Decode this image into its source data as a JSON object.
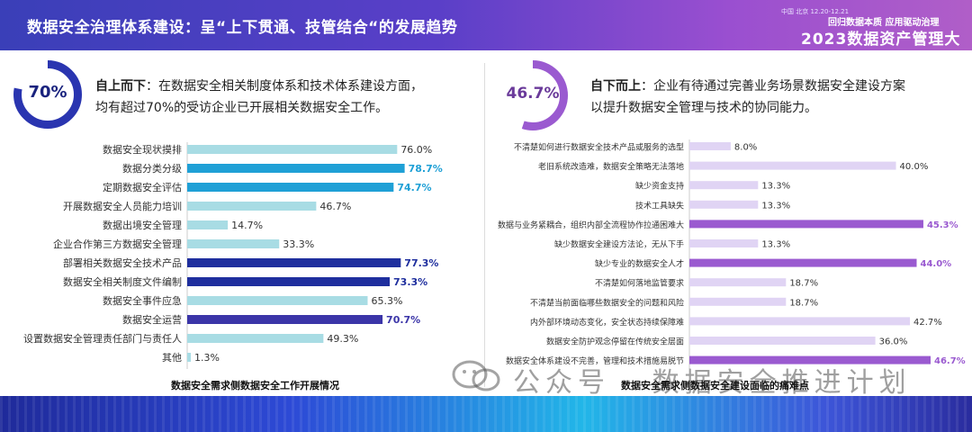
{
  "header": {
    "title": "数据安全治理体系建设：呈“上下贯通、技管结合“的发展趋势",
    "brand_sub": "中国 北京  12.20-12.21",
    "brand_tag": "回归数据本质 应用驱动治理",
    "brand_main": "2023数据资产管理大会"
  },
  "left_panel": {
    "ring_value": "70%",
    "ring_fraction": 0.78,
    "ring_color": "#2a35b0",
    "intro_bold": "自上而下",
    "intro_line1": "：在数据安全相关制度体系和技术体系建设方面，",
    "intro_line2": "均有超过70%的受访企业已开展相关数据安全工作。",
    "caption": "数据安全需求侧数据安全工作开展情况"
  },
  "right_panel": {
    "ring_value": "46.7%",
    "ring_fraction": 0.55,
    "ring_color": "#9a5ad0",
    "intro_bold": "自下而上",
    "intro_line1": "：企业有待通过完善业务场景数据安全建设方案",
    "intro_line2": "以提升数据安全管理与技术的协同能力。",
    "caption": "数据安全需求侧数据安全建设面临的痛难点"
  },
  "chart_data": [
    {
      "type": "bar",
      "orientation": "horizontal",
      "xlim": [
        0,
        100
      ],
      "categories": [
        "数据安全现状摸排",
        "数据分类分级",
        "定期数据安全评估",
        "开展数据安全人员能力培训",
        "数据出境安全管理",
        "企业合作第三方数据安全管理",
        "部署相关数据安全技术产品",
        "数据安全相关制度文件编制",
        "数据安全事件应急",
        "数据安全运营",
        "设置数据安全管理责任部门与责任人",
        "其他"
      ],
      "values": [
        76.0,
        78.7,
        74.7,
        46.7,
        14.7,
        33.3,
        77.3,
        73.3,
        65.3,
        70.7,
        49.3,
        1.3
      ],
      "labels": [
        "76.0%",
        "78.7%",
        "74.7%",
        "46.7%",
        "14.7%",
        "33.3%",
        "77.3%",
        "73.3%",
        "65.3%",
        "70.7%",
        "49.3%",
        "1.3%"
      ],
      "colors": [
        "#a8dce4",
        "#1fa0d6",
        "#1fa0d6",
        "#a8dce4",
        "#a8dce4",
        "#a8dce4",
        "#1f2f9e",
        "#1f2f9e",
        "#a8dce4",
        "#3b35a8",
        "#a8dce4",
        "#a8dce4"
      ],
      "label_colors": [
        "#333333",
        "#1fa0d6",
        "#1fa0d6",
        "#333333",
        "#333333",
        "#333333",
        "#1f2f9e",
        "#1f2f9e",
        "#333333",
        "#3b35a8",
        "#333333",
        "#333333"
      ],
      "label_bold": [
        false,
        true,
        true,
        false,
        false,
        false,
        true,
        true,
        false,
        true,
        false,
        false
      ]
    },
    {
      "type": "bar",
      "orientation": "horizontal",
      "xlim": [
        0,
        46.7
      ],
      "categories": [
        "不清楚如何进行数据安全技术产品或服务的选型",
        "老旧系统改造难，数据安全策略无法落地",
        "缺少资金支持",
        "技术工具缺失",
        "数据与业务紧耦合，组织内部全流程协作拉通困难大",
        "缺少数据安全建设方法论，无从下手",
        "缺少专业的数据安全人才",
        "不清楚如何落地监管要求",
        "不清楚当前面临哪些数据安全的问题和风险",
        "内外部环境动态变化，安全状态持续保障难",
        "数据安全防护观念停留在传统安全层面",
        "数据安全体系建设不完善，管理和技术措施易脱节"
      ],
      "values": [
        8.0,
        40.0,
        13.3,
        13.3,
        45.3,
        13.3,
        44.0,
        18.7,
        18.7,
        42.7,
        36.0,
        46.7
      ],
      "labels": [
        "8.0%",
        "40.0%",
        "13.3%",
        "13.3%",
        "45.3%",
        "13.3%",
        "44.0%",
        "18.7%",
        "18.7%",
        "42.7%",
        "36.0%",
        "46.7%"
      ],
      "colors": [
        "#e0d4f4",
        "#e0d4f4",
        "#e0d4f4",
        "#e0d4f4",
        "#9a5ad0",
        "#e0d4f4",
        "#9a5ad0",
        "#e0d4f4",
        "#e0d4f4",
        "#e0d4f4",
        "#e0d4f4",
        "#9a5ad0"
      ],
      "label_colors": [
        "#333333",
        "#333333",
        "#333333",
        "#333333",
        "#9a5ad0",
        "#333333",
        "#9a5ad0",
        "#333333",
        "#333333",
        "#333333",
        "#333333",
        "#9a5ad0"
      ],
      "label_bold": [
        false,
        false,
        false,
        false,
        true,
        false,
        true,
        false,
        false,
        false,
        false,
        true
      ]
    }
  ],
  "watermark": {
    "icon": "wechat-icon",
    "text": "公众号 · 数据安全推进计划"
  }
}
